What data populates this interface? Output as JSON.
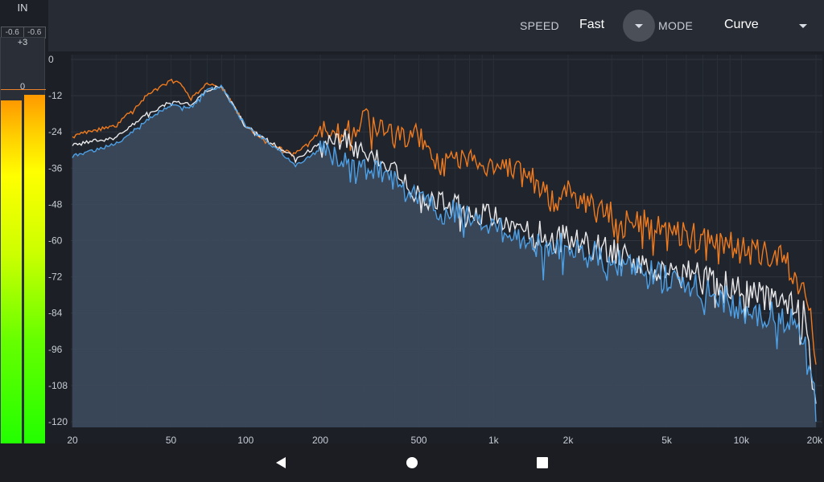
{
  "meter": {
    "title": "IN",
    "peak_left": "-0.6",
    "peak_right": "-0.6",
    "tick_plus3": "+3",
    "tick_zero": "0",
    "level_left": -1.2,
    "level_right": -0.6
  },
  "toolbar": {
    "speed_label": "SPEED",
    "speed_value": "Fast",
    "mode_label": "MODE",
    "mode_value": "Curve"
  },
  "chart_data": {
    "type": "line",
    "xscale": "log",
    "xlim": [
      20,
      20000
    ],
    "ylim": [
      -120,
      0
    ],
    "y_ticks": [
      "0",
      "-12",
      "-24",
      "-36",
      "-48",
      "-60",
      "-72",
      "-84",
      "-96",
      "-108",
      "-120"
    ],
    "x_ticks": [
      "20",
      "50",
      "100",
      "200",
      "500",
      "1k",
      "2k",
      "5k",
      "10k",
      "20k"
    ],
    "grid": true,
    "series": [
      {
        "color": "#f07a1e",
        "x": [
          20,
          30,
          40,
          50,
          55,
          60,
          70,
          80,
          100,
          130,
          160,
          200,
          250,
          300,
          400,
          500,
          600,
          800,
          1000,
          1300,
          1700,
          2000,
          3000,
          5000,
          8000,
          10000,
          15000,
          18000,
          20000
        ],
        "y": [
          -25,
          -22,
          -12,
          -7,
          -8,
          -13,
          -8,
          -9,
          -22,
          -29,
          -31,
          -24,
          -25,
          -18,
          -26,
          -25,
          -35,
          -33,
          -36,
          -36,
          -46,
          -45,
          -52,
          -56,
          -60,
          -63,
          -67,
          -78,
          -95
        ]
      },
      {
        "color": "#e8e8ea",
        "x": [
          20,
          30,
          40,
          50,
          60,
          70,
          80,
          100,
          130,
          160,
          200,
          250,
          300,
          400,
          500,
          600,
          800,
          1000,
          1300,
          1700,
          2000,
          3000,
          5000,
          8000,
          10000,
          15000,
          18000,
          20000
        ],
        "y": [
          -28,
          -26,
          -18,
          -14,
          -15,
          -10,
          -9,
          -22,
          -28,
          -33,
          -28,
          -27,
          -30,
          -35,
          -45,
          -47,
          -50,
          -52,
          -55,
          -60,
          -59,
          -63,
          -70,
          -73,
          -77,
          -80,
          -85,
          -114
        ]
      },
      {
        "color": "#4da0e6",
        "x": [
          20,
          30,
          40,
          50,
          60,
          70,
          80,
          100,
          130,
          160,
          200,
          250,
          300,
          400,
          500,
          600,
          800,
          1000,
          1300,
          1700,
          2000,
          3000,
          5000,
          8000,
          10000,
          15000,
          18000,
          20000
        ],
        "y": [
          -32,
          -28,
          -20,
          -15,
          -16,
          -10,
          -9,
          -22,
          -29,
          -35,
          -30,
          -33,
          -35,
          -38,
          -47,
          -49,
          -52,
          -55,
          -60,
          -62,
          -62,
          -67,
          -73,
          -78,
          -82,
          -86,
          -90,
          -116
        ]
      }
    ]
  },
  "nav": {
    "back_icon": "back-triangle-icon",
    "home_icon": "home-circle-icon",
    "recents_icon": "recents-square-icon"
  }
}
